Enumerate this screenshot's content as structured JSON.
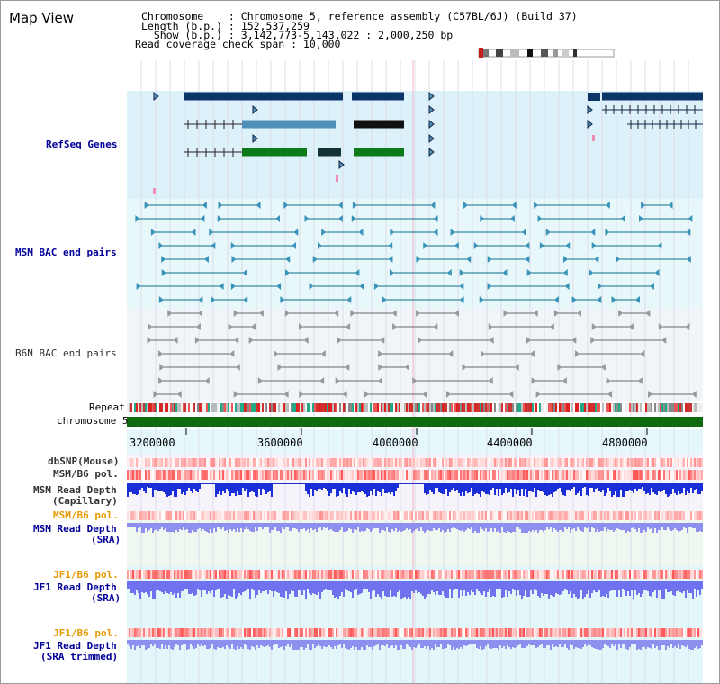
{
  "header": {
    "title": "Map View",
    "chromosome_line": "Chromosome    : Chromosome 5, reference assembly (C57BL/6J) (Build 37)",
    "length_line": "Length (b.p.) : 152,537,259",
    "show_line": "  Show (b.p.) : 3,142,773-5,143,022 : 2,000,250 bp",
    "span_line": "Read coverage check span : 10,000"
  },
  "tracks": {
    "refseq": "RefSeq Genes",
    "msm_bac": "MSM BAC end pairs",
    "b6n_bac": "B6N BAC end pairs",
    "repeat": "Repeat",
    "chromosome": "chromosome 5",
    "dbsnp": "dbSNP(Mouse)",
    "msm_b6_pol_1": "MSM/B6 pol.",
    "msm_depth_cap_1": "MSM Read Depth",
    "msm_depth_cap_2": "(Capillary)",
    "msm_b6_pol_2": "MSM/B6 pol.",
    "msm_depth_sra_1": "MSM Read Depth",
    "msm_depth_sra_2": "(SRA)",
    "jf1_pol_1": "JF1/B6 pol.",
    "jf1_depth_sra_1": "JF1 Read Depth",
    "jf1_depth_sra_2": "(SRA)",
    "jf1_pol_2": "JF1/B6 pol.",
    "jf1_depth_trim_1": "JF1 Read Depth",
    "jf1_depth_trim_2": "(SRA trimmed)"
  },
  "ruler": {
    "ticks": [
      "3200000",
      "3600000",
      "4000000",
      "4400000",
      "4800000"
    ]
  },
  "colors": {
    "refseq_bg": "#ddf1fb",
    "bac_bg": "#e8f7fa",
    "b6n_bg": "#f2f5f8",
    "gene_dark": "#0b3566",
    "gene_mid": "#4f8fb8",
    "gene_green": "#0c7a18",
    "chromosome": "#0f6a0f",
    "label_blue": "#000099",
    "label_orange": "#e69a00",
    "depth_blue": "#1a2fd8",
    "depth_light": "#8f8ff0"
  }
}
